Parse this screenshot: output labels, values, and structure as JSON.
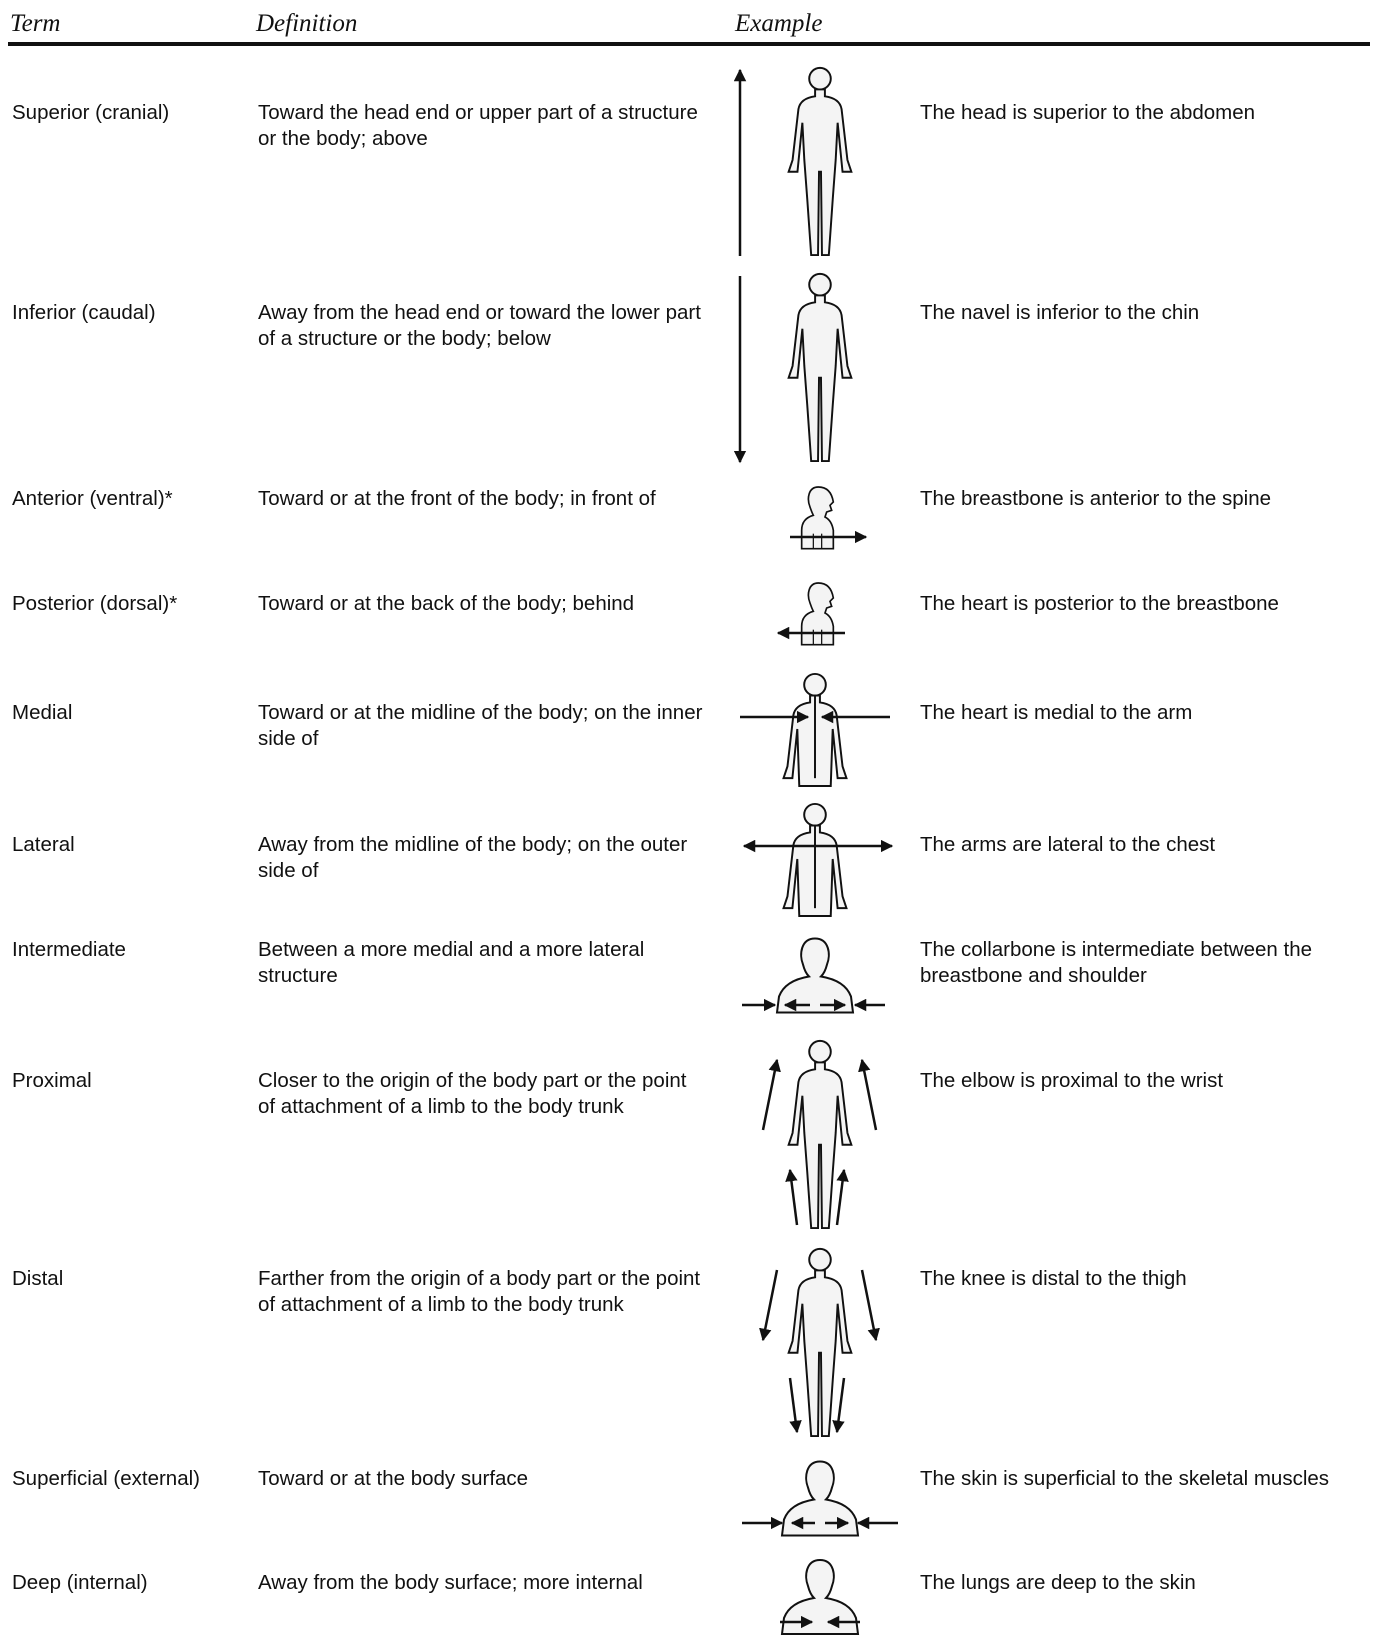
{
  "header": {
    "term": "Term",
    "definition": "Definition",
    "example": "Example"
  },
  "rows": [
    {
      "term": "Superior (cranial)",
      "definition": "Toward the head end or upper part of a structure or the body; above",
      "example": "The head is superior to the abdomen"
    },
    {
      "term": "Inferior (caudal)",
      "definition": "Away from the head end or toward the lower part of a structure or the body; below",
      "example": "The navel is inferior to the chin"
    },
    {
      "term": "Anterior (ventral)*",
      "definition": "Toward or at the front of the body; in front of",
      "example": "The breastbone is anterior to the spine"
    },
    {
      "term": "Posterior (dorsal)*",
      "definition": "Toward or at the back of the body; behind",
      "example": "The heart is posterior to the breastbone"
    },
    {
      "term": "Medial",
      "definition": "Toward or at the midline of the body; on the inner side of",
      "example": "The heart is medial to the arm"
    },
    {
      "term": "Lateral",
      "definition": "Away from the midline of the body; on the outer side of",
      "example": "The arms are lateral to the chest"
    },
    {
      "term": "Intermediate",
      "definition": "Between a more medial and a more lateral structure",
      "example": "The collarbone is intermediate between the breastbone and shoulder"
    },
    {
      "term": "Proximal",
      "definition": "Closer to the origin of the body part or the point of attachment of a limb to the body trunk",
      "example": "The elbow is proximal to the wrist"
    },
    {
      "term": "Distal",
      "definition": "Farther from the origin of a body part or the point of attachment of a limb to the body trunk",
      "example": "The knee is distal to the thigh"
    },
    {
      "term": "Superficial (external)",
      "definition": "Toward or at the body surface",
      "example": "The skin is superficial to the skeletal muscles"
    },
    {
      "term": "Deep (internal)",
      "definition": "Away from the body surface; more internal",
      "example": "The lungs are deep to the skin"
    }
  ]
}
